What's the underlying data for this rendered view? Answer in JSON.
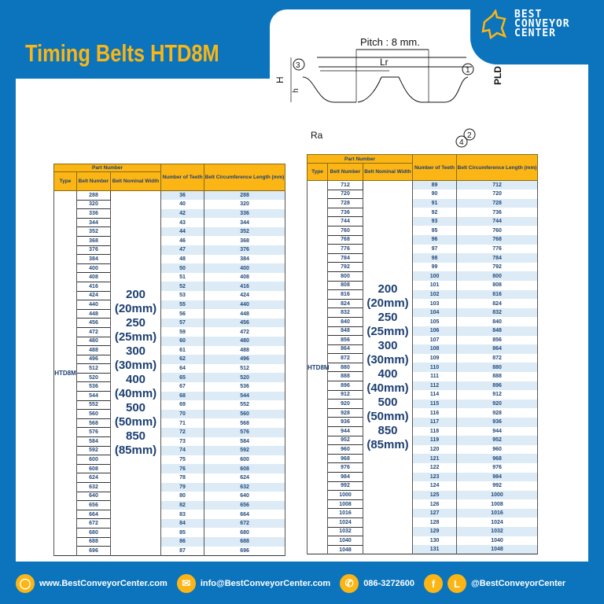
{
  "title": "Timing Belts HTD8M",
  "logo": {
    "line1": "BEST",
    "line2": "CONVEYOR",
    "line3": "CENTER"
  },
  "diagram": {
    "pitch": "Pitch : 8 mm.",
    "lr": "Lr",
    "pld": "PLD",
    "H": "H",
    "h": "h",
    "Ra": "Ra",
    "c1": "1",
    "c2": "2",
    "c3": "3",
    "c4": "4"
  },
  "table_headers": {
    "part_number": "Part Number",
    "type": "Type",
    "belt_number": "Belt Number",
    "nominal_width": "Belt Nominal Width",
    "teeth": "Number of Teeth",
    "length": "Belt Circumference Length (mm)"
  },
  "type": "HTD8M",
  "widths": [
    "200",
    "(20mm)",
    "250",
    "(25mm)",
    "300",
    "(30mm)",
    "400",
    "(40mm)",
    "500",
    "(50mm)",
    "850",
    "(85mm)"
  ],
  "left_table": {
    "rows": [
      [
        "288",
        "36",
        "288"
      ],
      [
        "320",
        "40",
        "320"
      ],
      [
        "336",
        "42",
        "336"
      ],
      [
        "344",
        "43",
        "344"
      ],
      [
        "352",
        "44",
        "352"
      ],
      [
        "368",
        "46",
        "368"
      ],
      [
        "376",
        "47",
        "376"
      ],
      [
        "384",
        "48",
        "384"
      ],
      [
        "400",
        "50",
        "400"
      ],
      [
        "408",
        "51",
        "408"
      ],
      [
        "416",
        "52",
        "416"
      ],
      [
        "424",
        "53",
        "424"
      ],
      [
        "440",
        "55",
        "440"
      ],
      [
        "448",
        "56",
        "448"
      ],
      [
        "456",
        "57",
        "456"
      ],
      [
        "472",
        "59",
        "472"
      ],
      [
        "480",
        "60",
        "480"
      ],
      [
        "488",
        "61",
        "488"
      ],
      [
        "496",
        "62",
        "496"
      ],
      [
        "512",
        "64",
        "512"
      ],
      [
        "520",
        "65",
        "520"
      ],
      [
        "536",
        "67",
        "536"
      ],
      [
        "544",
        "68",
        "544"
      ],
      [
        "552",
        "69",
        "552"
      ],
      [
        "560",
        "70",
        "560"
      ],
      [
        "568",
        "71",
        "568"
      ],
      [
        "576",
        "72",
        "576"
      ],
      [
        "584",
        "73",
        "584"
      ],
      [
        "592",
        "74",
        "592"
      ],
      [
        "600",
        "75",
        "600"
      ],
      [
        "608",
        "76",
        "608"
      ],
      [
        "624",
        "78",
        "624"
      ],
      [
        "632",
        "79",
        "632"
      ],
      [
        "640",
        "80",
        "640"
      ],
      [
        "656",
        "82",
        "656"
      ],
      [
        "664",
        "83",
        "664"
      ],
      [
        "672",
        "84",
        "672"
      ],
      [
        "680",
        "85",
        "680"
      ],
      [
        "688",
        "86",
        "688"
      ],
      [
        "696",
        "87",
        "696"
      ]
    ]
  },
  "right_table": {
    "rows": [
      [
        "712",
        "89",
        "712"
      ],
      [
        "720",
        "90",
        "720"
      ],
      [
        "728",
        "91",
        "728"
      ],
      [
        "736",
        "92",
        "736"
      ],
      [
        "744",
        "93",
        "744"
      ],
      [
        "760",
        "95",
        "760"
      ],
      [
        "768",
        "96",
        "768"
      ],
      [
        "776",
        "97",
        "776"
      ],
      [
        "784",
        "98",
        "784"
      ],
      [
        "792",
        "99",
        "792"
      ],
      [
        "800",
        "100",
        "800"
      ],
      [
        "808",
        "101",
        "808"
      ],
      [
        "816",
        "102",
        "816"
      ],
      [
        "824",
        "103",
        "824"
      ],
      [
        "832",
        "104",
        "832"
      ],
      [
        "840",
        "105",
        "840"
      ],
      [
        "848",
        "106",
        "848"
      ],
      [
        "856",
        "107",
        "856"
      ],
      [
        "864",
        "108",
        "864"
      ],
      [
        "872",
        "109",
        "872"
      ],
      [
        "880",
        "110",
        "880"
      ],
      [
        "888",
        "111",
        "888"
      ],
      [
        "896",
        "112",
        "896"
      ],
      [
        "912",
        "114",
        "912"
      ],
      [
        "920",
        "115",
        "920"
      ],
      [
        "928",
        "116",
        "928"
      ],
      [
        "936",
        "117",
        "936"
      ],
      [
        "944",
        "118",
        "944"
      ],
      [
        "952",
        "119",
        "952"
      ],
      [
        "960",
        "120",
        "960"
      ],
      [
        "968",
        "121",
        "968"
      ],
      [
        "976",
        "122",
        "976"
      ],
      [
        "984",
        "123",
        "984"
      ],
      [
        "992",
        "124",
        "992"
      ],
      [
        "1000",
        "125",
        "1000"
      ],
      [
        "1008",
        "126",
        "1008"
      ],
      [
        "1016",
        "127",
        "1016"
      ],
      [
        "1024",
        "128",
        "1024"
      ],
      [
        "1032",
        "129",
        "1032"
      ],
      [
        "1040",
        "130",
        "1040"
      ],
      [
        "1048",
        "131",
        "1048"
      ]
    ]
  },
  "footer": {
    "website": "www.BestConveyorCenter.com",
    "email": "info@BestConveyorCenter.com",
    "phone": "086-3272600",
    "social": "@BestConveyorCenter",
    "line_letter": "L",
    "fb_letter": "f"
  },
  "colors": {
    "brand_blue": "#0b74bd",
    "accent_yellow": "#fbb515"
  }
}
